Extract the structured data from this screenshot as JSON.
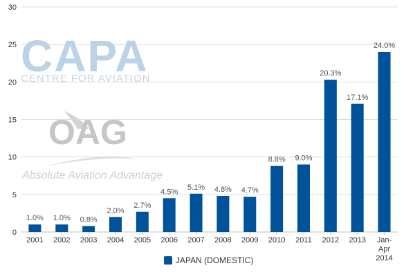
{
  "watermarks": {
    "capa_logo": "CAPA",
    "capa_subtitle": "CENTRE FOR AVIATION",
    "oag_logo": "OAG",
    "oag_tagline": "Absolute Aviation Advantage"
  },
  "chart_data": {
    "type": "bar",
    "title": "",
    "xlabel": "",
    "ylabel": "",
    "ylim": [
      0,
      30
    ],
    "yticks": [
      0,
      5,
      10,
      15,
      20,
      25,
      30
    ],
    "ytick_labels": [
      "0",
      "5",
      "10",
      "15",
      "20",
      "25",
      "30"
    ],
    "grid": true,
    "legend_position": "bottom",
    "categories": [
      "2001",
      "2002",
      "2003",
      "2004",
      "2005",
      "2006",
      "2007",
      "2008",
      "2009",
      "2010",
      "2011",
      "2012",
      "2013",
      "Jan-Apr 2014"
    ],
    "category_lines": [
      [
        "2001"
      ],
      [
        "2002"
      ],
      [
        "2003"
      ],
      [
        "2004"
      ],
      [
        "2005"
      ],
      [
        "2006"
      ],
      [
        "2007"
      ],
      [
        "2008"
      ],
      [
        "2009"
      ],
      [
        "2010"
      ],
      [
        "2011"
      ],
      [
        "2012"
      ],
      [
        "2013"
      ],
      [
        "Jan-",
        "Apr",
        "2014"
      ]
    ],
    "series": [
      {
        "name": "JAPAN (DOMESTIC)",
        "color": "#00529b",
        "values": [
          1.0,
          1.0,
          0.8,
          2.0,
          2.7,
          4.5,
          5.1,
          4.8,
          4.7,
          8.8,
          9.0,
          20.3,
          17.1,
          24.0
        ],
        "labels": [
          "1.0%",
          "1.0%",
          "0.8%",
          "2.0%",
          "2.7%",
          "4.5%",
          "5.1%",
          "4.8%",
          "4.7%",
          "8.8%",
          "9.0%",
          "20.3%",
          "17.1%",
          "24.0%"
        ]
      }
    ]
  }
}
